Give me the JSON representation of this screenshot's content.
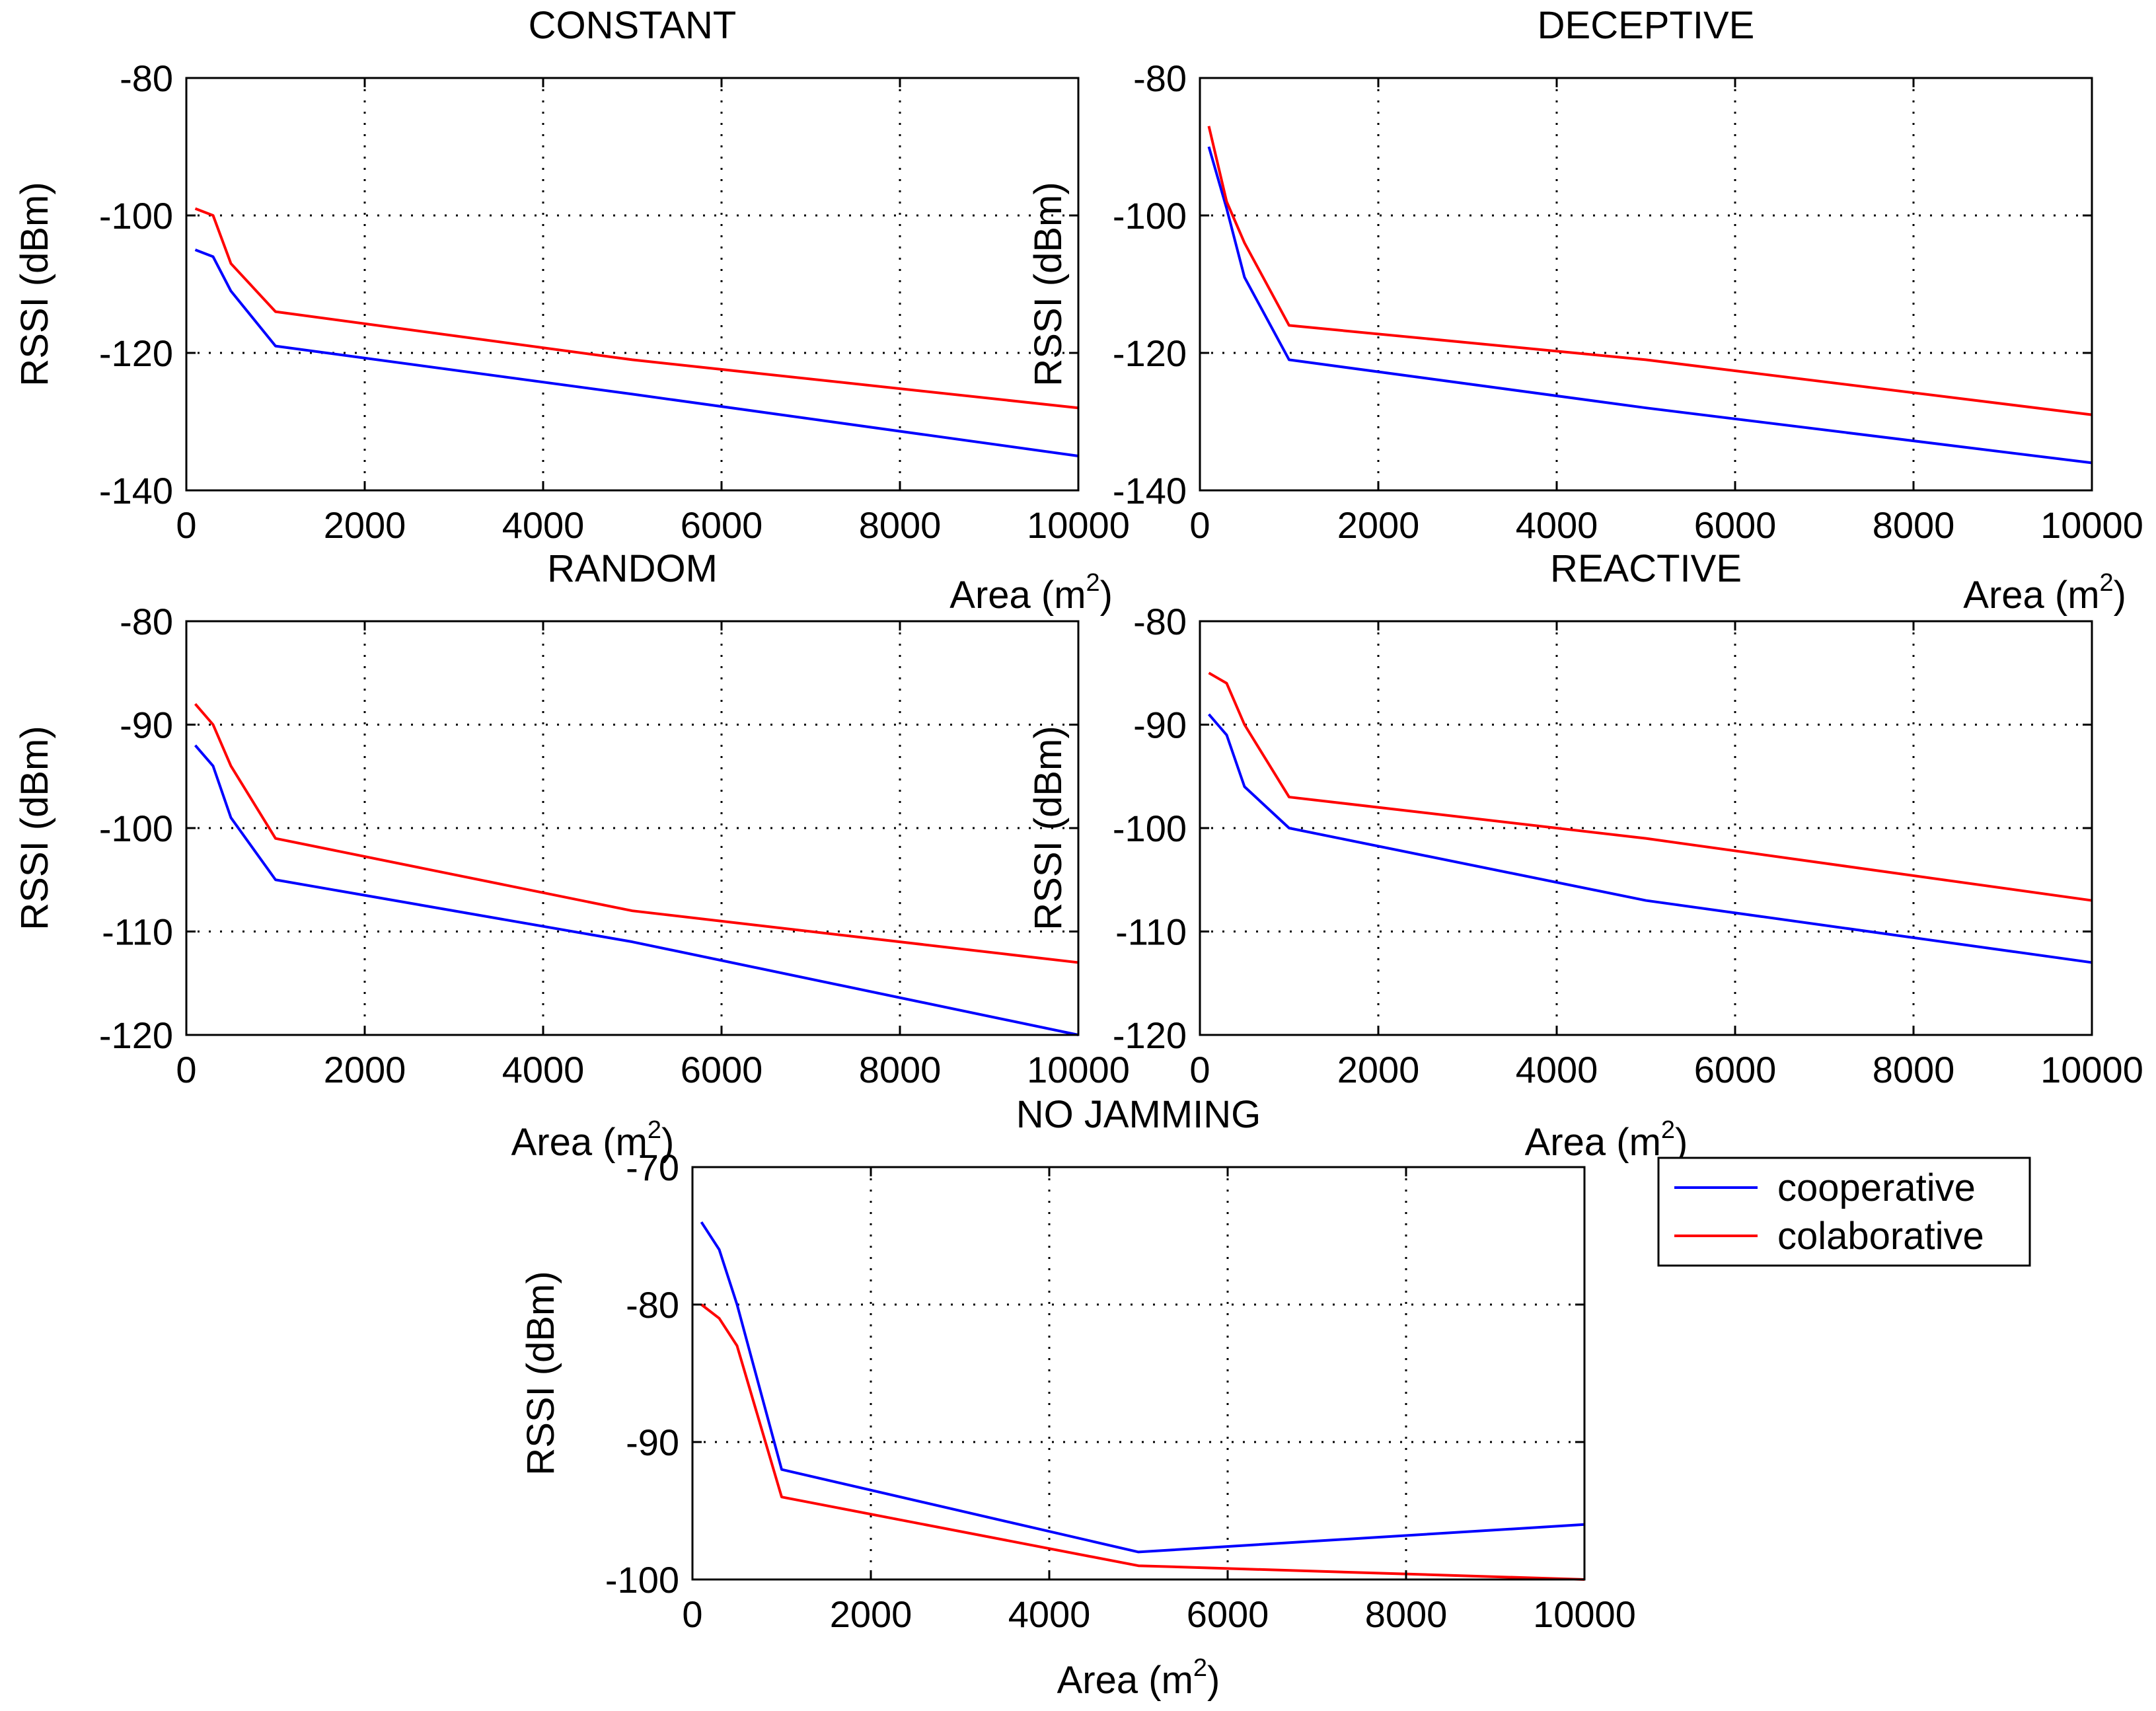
{
  "colors": {
    "cooperative": "#0000ff",
    "colaborative": "#ff0000",
    "axis": "#000000",
    "grid": "#000000",
    "background": "#ffffff"
  },
  "legend": {
    "entries": [
      "cooperative",
      "colaborative"
    ],
    "placement": "right of bottom panel"
  },
  "chart_data": [
    {
      "type": "line",
      "title": "CONSTANT",
      "xlabel": "Area (m",
      "xlabel_sup": "2",
      "xlabel_close": ")",
      "ylabel": "RSSI (dBm)",
      "xlim": [
        0,
        10000
      ],
      "ylim": [
        -140,
        -80
      ],
      "xticks": [
        0,
        2000,
        4000,
        6000,
        8000,
        10000
      ],
      "yticks": [
        -140,
        -120,
        -100,
        -80
      ],
      "grid": true,
      "x": [
        100,
        300,
        500,
        1000,
        5000,
        10000
      ],
      "series": [
        {
          "name": "cooperative",
          "values": [
            -105,
            -106,
            -111,
            -119,
            -126,
            -135
          ]
        },
        {
          "name": "colaborative",
          "values": [
            -99,
            -100,
            -107,
            -114,
            -121,
            -128
          ]
        }
      ]
    },
    {
      "type": "line",
      "title": "DECEPTIVE",
      "xlabel": "Area (m",
      "xlabel_sup": "2",
      "xlabel_close": ")",
      "ylabel": "RSSI (dBm)",
      "xlim": [
        0,
        10000
      ],
      "ylim": [
        -140,
        -80
      ],
      "xticks": [
        0,
        2000,
        4000,
        6000,
        8000,
        10000
      ],
      "yticks": [
        -140,
        -120,
        -100,
        -80
      ],
      "grid": true,
      "x": [
        100,
        300,
        500,
        1000,
        5000,
        10000
      ],
      "series": [
        {
          "name": "cooperative",
          "values": [
            -90,
            -99,
            -109,
            -121,
            -128,
            -136
          ]
        },
        {
          "name": "colaborative",
          "values": [
            -87,
            -98,
            -104,
            -116,
            -121,
            -129
          ]
        }
      ]
    },
    {
      "type": "line",
      "title": "RANDOM",
      "xlabel": "Area (m",
      "xlabel_sup": "2",
      "xlabel_close": ")",
      "ylabel": "RSSI (dBm)",
      "xlim": [
        0,
        10000
      ],
      "ylim": [
        -120,
        -80
      ],
      "xticks": [
        0,
        2000,
        4000,
        6000,
        8000,
        10000
      ],
      "yticks": [
        -120,
        -110,
        -100,
        -90,
        -80
      ],
      "grid": true,
      "x": [
        100,
        300,
        500,
        1000,
        5000,
        10000
      ],
      "series": [
        {
          "name": "cooperative",
          "values": [
            -92,
            -94,
            -99,
            -105,
            -111,
            -120
          ]
        },
        {
          "name": "colaborative",
          "values": [
            -88,
            -90,
            -94,
            -101,
            -108,
            -113
          ]
        }
      ]
    },
    {
      "type": "line",
      "title": "REACTIVE",
      "xlabel": "Area (m",
      "xlabel_sup": "2",
      "xlabel_close": ")",
      "ylabel": "RSSI (dBm)",
      "xlim": [
        0,
        10000
      ],
      "ylim": [
        -120,
        -80
      ],
      "xticks": [
        0,
        2000,
        4000,
        6000,
        8000,
        10000
      ],
      "yticks": [
        -120,
        -110,
        -100,
        -90,
        -80
      ],
      "grid": true,
      "x": [
        100,
        200,
        300,
        500,
        1000,
        5000,
        10000
      ],
      "series": [
        {
          "name": "cooperative",
          "values": [
            -89,
            -90,
            -91,
            -96,
            -100,
            -107,
            -113
          ]
        },
        {
          "name": "colaborative",
          "values": [
            -85,
            -85.5,
            -86,
            -90,
            -97,
            -101,
            -107
          ]
        }
      ]
    },
    {
      "type": "line",
      "title": "NO JAMMING",
      "xlabel": "Area (m",
      "xlabel_sup": "2",
      "xlabel_close": ")",
      "ylabel": "RSSI (dBm)",
      "xlim": [
        0,
        10000
      ],
      "ylim": [
        -100,
        -70
      ],
      "xticks": [
        0,
        2000,
        4000,
        6000,
        8000,
        10000
      ],
      "yticks": [
        -100,
        -90,
        -80,
        -70
      ],
      "grid": true,
      "x": [
        100,
        300,
        500,
        1000,
        5000,
        10000
      ],
      "series": [
        {
          "name": "cooperative",
          "values": [
            -74,
            -76,
            -80,
            -92,
            -98,
            -96
          ]
        },
        {
          "name": "colaborative",
          "values": [
            -80,
            -81,
            -83,
            -94,
            -99,
            -100
          ]
        }
      ]
    }
  ]
}
